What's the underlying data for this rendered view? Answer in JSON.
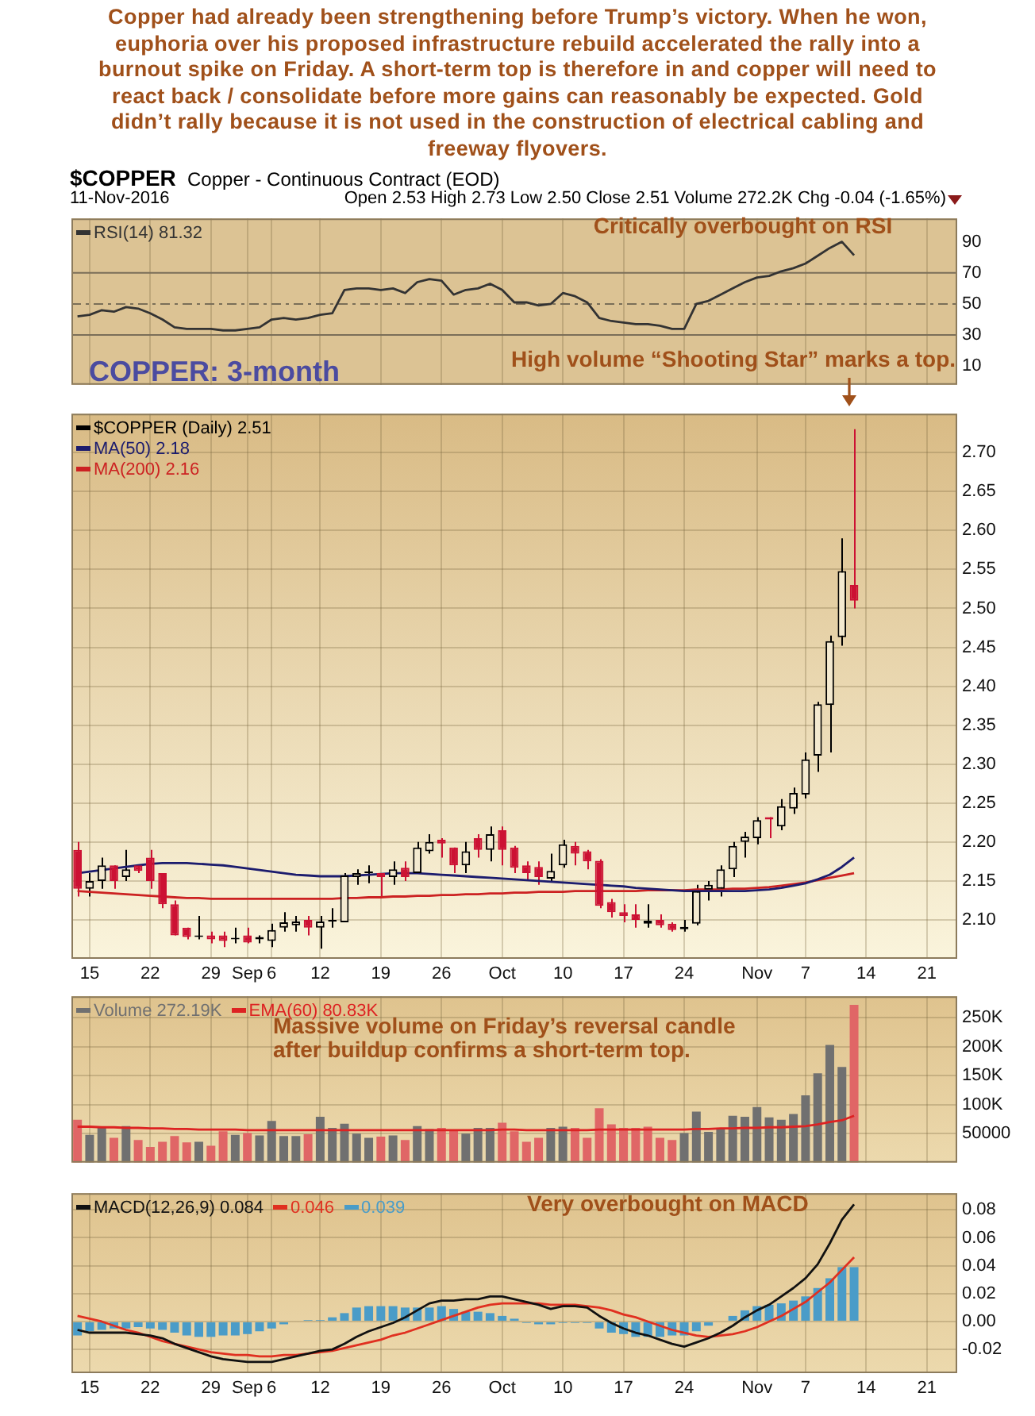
{
  "chart_data": [
    {
      "type": "other",
      "title": "Copper had already been strengthening before Trump’s victory. When he won, euphoria over his proposed infrastructure rebuild accelerated the rally into a burnout spike on Friday. A short-term top is therefore in and copper will need to react back / consolidate before more gains can reasonably be expected. Gold didn’t rally because it is not used in the construction of electrical cabling and freeway flyovers.",
      "annotations": [
        "$COPPER",
        "Copper - Continuous Contract (EOD)",
        "11-Nov-2016",
        "Open 2.53  High 2.73  Low 2.50  Close 2.51  Volume 272.2K  Chg -0.04 (-1.65%)"
      ]
    },
    {
      "type": "line",
      "categories": [
        null,
        null,
        null,
        null,
        null,
        null,
        null,
        null,
        null,
        null,
        null,
        null,
        null,
        null,
        null,
        null,
        null,
        null,
        null,
        null,
        null,
        null,
        null,
        null,
        null,
        null,
        null,
        null,
        null,
        null,
        null,
        null,
        null,
        null,
        null,
        null,
        null,
        null,
        null,
        null,
        null,
        null,
        null,
        null,
        null,
        null,
        null,
        null,
        null,
        null,
        null,
        null,
        null,
        null,
        null,
        null,
        null,
        null,
        null,
        null,
        null,
        null,
        null,
        null,
        null,
        null,
        null,
        null,
        null,
        null,
        null,
        null,
        null
      ],
      "series": [
        {
          "name": "RSI(14) 81.32",
          "color": "#333333",
          "values": [
            42,
            43,
            46,
            45,
            48,
            47,
            44,
            40,
            35,
            34,
            34,
            34,
            33,
            33,
            34,
            35,
            40,
            41,
            40,
            41,
            43,
            44,
            59,
            60,
            60,
            59,
            60,
            57,
            64,
            66,
            65,
            56,
            59,
            60,
            63,
            59,
            51,
            51,
            49,
            50,
            57,
            55,
            51,
            41,
            39,
            38,
            37,
            37,
            36,
            34,
            34,
            50,
            52,
            56,
            60,
            64,
            67,
            68,
            71,
            73,
            76,
            81,
            86,
            90,
            81.32,
            null,
            null,
            null,
            null,
            null,
            null,
            null,
            null
          ]
        }
      ],
      "ylim": [
        -2,
        105
      ],
      "yticks": [
        10,
        30,
        50,
        70,
        90
      ],
      "grid": "x",
      "tick_labels": "y",
      "legend": "top left",
      "ref_lines": [
        {
          "axis": "y",
          "value": 70,
          "color": "#7a6e58",
          "line_style": "solid"
        },
        {
          "axis": "y",
          "value": 50,
          "color": "#7a6e58",
          "line_style": "dashed"
        },
        {
          "axis": "y",
          "value": 30,
          "color": "#7a6e58",
          "line_style": "solid"
        }
      ],
      "annotations": [
        "Critically overbought on RSI"
      ]
    },
    {
      "type": "candlestick",
      "categories": [
        null,
        "15",
        null,
        null,
        null,
        null,
        "22",
        null,
        null,
        null,
        null,
        "29",
        null,
        null,
        "Sep",
        null,
        "6",
        null,
        null,
        null,
        "12",
        null,
        null,
        null,
        null,
        "19",
        null,
        null,
        null,
        null,
        "26",
        null,
        null,
        null,
        null,
        "Oct",
        null,
        null,
        null,
        null,
        "10",
        null,
        null,
        null,
        null,
        "17",
        null,
        null,
        null,
        null,
        "24",
        null,
        null,
        null,
        null,
        null,
        "Nov",
        null,
        null,
        null,
        "7",
        null,
        null,
        null,
        null,
        "14",
        null,
        null,
        null,
        null,
        "21",
        null,
        null
      ],
      "series": [
        {
          "name": "$COPPER (Daily) 2.51",
          "type": "candlestick",
          "color": "#000000",
          "colors": [
            "#cc1133",
            "#000000",
            "#000000",
            "#cc1133",
            "#000000",
            "#cc1133",
            "#cc1133",
            "#cc1133",
            "#cc1133",
            "#cc1133",
            "#000000",
            "#cc1133",
            "#cc1133",
            "#000000",
            "#cc1133",
            "#000000",
            "#000000",
            "#000000",
            "#000000",
            "#cc1133",
            "#000000",
            "#000000",
            "#000000",
            "#000000",
            "#000000",
            "#cc1133",
            "#000000",
            "#cc1133",
            "#000000",
            "#000000",
            "#cc1133",
            "#cc1133",
            "#000000",
            "#cc1133",
            "#000000",
            "#cc1133",
            "#cc1133",
            "#cc1133",
            "#cc1133",
            "#000000",
            "#000000",
            "#cc1133",
            "#cc1133",
            "#cc1133",
            "#cc1133",
            "#cc1133",
            "#cc1133",
            "#000000",
            "#cc1133",
            "#cc1133",
            "#000000",
            "#000000",
            "#000000",
            "#000000",
            "#000000",
            "#000000",
            "#000000",
            "#cc1133",
            "#000000",
            "#000000",
            "#000000",
            "#000000",
            "#000000",
            "#000000",
            "#cc1133",
            null,
            null,
            null,
            null,
            null,
            null,
            null,
            null
          ],
          "ohlc": [
            [
              2.19,
              2.2,
              2.13,
              2.14
            ],
            [
              2.14,
              2.16,
              2.13,
              2.15
            ],
            [
              2.15,
              2.18,
              2.14,
              2.17
            ],
            [
              2.17,
              2.17,
              2.14,
              2.15
            ],
            [
              2.155,
              2.19,
              2.15,
              2.165
            ],
            [
              2.17,
              2.17,
              2.16,
              2.163
            ],
            [
              2.18,
              2.19,
              2.14,
              2.15
            ],
            [
              2.16,
              2.16,
              2.115,
              2.12
            ],
            [
              2.12,
              2.125,
              2.08,
              2.08
            ],
            [
              2.09,
              2.09,
              2.075,
              2.078
            ],
            [
              2.078,
              2.105,
              2.075,
              2.08
            ],
            [
              2.08,
              2.085,
              2.07,
              2.075
            ],
            [
              2.08,
              2.085,
              2.065,
              2.073
            ],
            [
              2.075,
              2.09,
              2.07,
              2.077
            ],
            [
              2.08,
              2.09,
              2.07,
              2.071
            ],
            [
              2.075,
              2.08,
              2.07,
              2.078
            ],
            [
              2.073,
              2.095,
              2.065,
              2.087
            ],
            [
              2.09,
              2.11,
              2.085,
              2.097
            ],
            [
              2.093,
              2.105,
              2.085,
              2.098
            ],
            [
              2.1,
              2.105,
              2.08,
              2.09
            ],
            [
              2.09,
              2.105,
              2.063,
              2.098
            ],
            [
              2.098,
              2.115,
              2.09,
              2.1
            ],
            [
              2.097,
              2.16,
              2.097,
              2.157
            ],
            [
              2.155,
              2.165,
              2.145,
              2.16
            ],
            [
              2.16,
              2.17,
              2.147,
              2.16
            ],
            [
              2.16,
              2.16,
              2.13,
              2.155
            ],
            [
              2.155,
              2.175,
              2.145,
              2.165
            ],
            [
              2.167,
              2.175,
              2.15,
              2.155
            ],
            [
              2.16,
              2.2,
              2.16,
              2.193
            ],
            [
              2.188,
              2.21,
              2.185,
              2.2
            ],
            [
              2.203,
              2.205,
              2.18,
              2.198
            ],
            [
              2.193,
              2.193,
              2.16,
              2.17
            ],
            [
              2.17,
              2.2,
              2.16,
              2.188
            ],
            [
              2.205,
              2.21,
              2.18,
              2.19
            ],
            [
              2.19,
              2.22,
              2.175,
              2.21
            ],
            [
              2.215,
              2.22,
              2.17,
              2.19
            ],
            [
              2.193,
              2.195,
              2.16,
              2.167
            ],
            [
              2.17,
              2.175,
              2.15,
              2.16
            ],
            [
              2.168,
              2.175,
              2.145,
              2.155
            ],
            [
              2.153,
              2.185,
              2.148,
              2.163
            ],
            [
              2.17,
              2.203,
              2.167,
              2.197
            ],
            [
              2.195,
              2.2,
              2.17,
              2.185
            ],
            [
              2.188,
              2.19,
              2.165,
              2.175
            ],
            [
              2.176,
              2.178,
              2.115,
              2.118
            ],
            [
              2.123,
              2.127,
              2.103,
              2.11
            ],
            [
              2.11,
              2.12,
              2.097,
              2.105
            ],
            [
              2.107,
              2.12,
              2.09,
              2.1
            ],
            [
              2.095,
              2.12,
              2.09,
              2.099
            ],
            [
              2.1,
              2.107,
              2.09,
              2.093
            ],
            [
              2.095,
              2.097,
              2.085,
              2.087
            ],
            [
              2.088,
              2.1,
              2.085,
              2.091
            ],
            [
              2.095,
              2.145,
              2.093,
              2.137
            ],
            [
              2.139,
              2.15,
              2.125,
              2.145
            ],
            [
              2.14,
              2.17,
              2.13,
              2.165
            ],
            [
              2.165,
              2.2,
              2.155,
              2.195
            ],
            [
              2.2,
              2.213,
              2.18,
              2.207
            ],
            [
              2.205,
              2.232,
              2.197,
              2.228
            ],
            [
              2.232,
              2.232,
              2.205,
              2.229
            ],
            [
              2.22,
              2.255,
              2.215,
              2.246
            ],
            [
              2.243,
              2.27,
              2.236,
              2.263
            ],
            [
              2.261,
              2.315,
              2.256,
              2.306
            ],
            [
              2.311,
              2.38,
              2.29,
              2.377
            ],
            [
              2.376,
              2.465,
              2.315,
              2.458
            ],
            [
              2.463,
              2.59,
              2.452,
              2.548
            ],
            [
              2.53,
              2.73,
              2.5,
              2.51
            ],
            null,
            null,
            null,
            null,
            null,
            null,
            null,
            null
          ]
        },
        {
          "name": "MA(50) 2.18",
          "type": "line",
          "color": "#1c1c6e",
          "values": [
            2.16,
            2.162,
            2.164,
            2.166,
            2.168,
            2.17,
            2.172,
            2.173,
            2.173,
            2.173,
            2.172,
            2.171,
            2.17,
            2.168,
            2.166,
            2.164,
            2.162,
            2.16,
            2.158,
            2.157,
            2.156,
            2.156,
            2.156,
            2.157,
            2.158,
            2.159,
            2.16,
            2.16,
            2.16,
            2.159,
            2.158,
            2.157,
            2.156,
            2.155,
            2.154,
            2.153,
            2.152,
            2.151,
            2.15,
            2.149,
            2.148,
            2.147,
            2.146,
            2.145,
            2.144,
            2.143,
            2.141,
            2.14,
            2.139,
            2.138,
            2.137,
            2.137,
            2.137,
            2.137,
            2.137,
            2.137,
            2.138,
            2.139,
            2.141,
            2.144,
            2.147,
            2.152,
            2.158,
            2.168,
            2.18,
            null,
            null,
            null,
            null,
            null,
            null,
            null,
            null
          ]
        },
        {
          "name": "MA(200) 2.16",
          "type": "line",
          "color": "#cc2222",
          "values": [
            2.137,
            2.136,
            2.135,
            2.134,
            2.133,
            2.132,
            2.131,
            2.13,
            2.129,
            2.128,
            2.128,
            2.127,
            2.127,
            2.127,
            2.127,
            2.127,
            2.127,
            2.127,
            2.127,
            2.127,
            2.127,
            2.127,
            2.128,
            2.128,
            2.129,
            2.129,
            2.13,
            2.13,
            2.131,
            2.131,
            2.132,
            2.132,
            2.133,
            2.133,
            2.134,
            2.134,
            2.135,
            2.135,
            2.136,
            2.136,
            2.136,
            2.137,
            2.137,
            2.137,
            2.137,
            2.137,
            2.137,
            2.138,
            2.138,
            2.138,
            2.138,
            2.139,
            2.139,
            2.139,
            2.14,
            2.14,
            2.141,
            2.142,
            2.144,
            2.146,
            2.148,
            2.151,
            2.154,
            2.157,
            2.16,
            null,
            null,
            null,
            null,
            null,
            null,
            null,
            null
          ]
        }
      ],
      "ylim": [
        2.05,
        2.75
      ],
      "yticks": [
        {
          "value": 2.1,
          "label": "2.10"
        },
        2.15,
        {
          "value": 2.2,
          "label": "2.20"
        },
        2.25,
        {
          "value": 2.3,
          "label": "2.30"
        },
        2.35,
        {
          "value": 2.4,
          "label": "2.40"
        },
        2.45,
        {
          "value": 2.5,
          "label": "2.50"
        },
        2.55,
        {
          "value": 2.6,
          "label": "2.60"
        },
        2.65,
        {
          "value": 2.7,
          "label": "2.70"
        }
      ],
      "grid": true,
      "legend": "top left",
      "annotations": [
        "High volume “Shooting Star” marks a top.",
        "COPPER: 3-month"
      ]
    },
    {
      "type": "bar",
      "categories": [
        null,
        null,
        null,
        null,
        null,
        null,
        null,
        null,
        null,
        null,
        null,
        null,
        null,
        null,
        null,
        null,
        null,
        null,
        null,
        null,
        null,
        null,
        null,
        null,
        null,
        null,
        null,
        null,
        null,
        null,
        null,
        null,
        null,
        null,
        null,
        null,
        null,
        null,
        null,
        null,
        null,
        null,
        null,
        null,
        null,
        null,
        null,
        null,
        null,
        null,
        null,
        null,
        null,
        null,
        null,
        null,
        null,
        null,
        null,
        null,
        null,
        null,
        null,
        null,
        null,
        null,
        null,
        null,
        null,
        null,
        null,
        null,
        null
      ],
      "series": [
        {
          "name": "Volume 272.19K",
          "color": "#707070",
          "colors": [
            "#e06666",
            "#707070",
            "#707070",
            "#e06666",
            "#707070",
            "#e06666",
            "#e06666",
            "#e06666",
            "#e06666",
            "#e06666",
            "#707070",
            "#e06666",
            "#e06666",
            "#707070",
            "#e06666",
            "#707070",
            "#707070",
            "#707070",
            "#707070",
            "#e06666",
            "#707070",
            "#707070",
            "#707070",
            "#707070",
            "#707070",
            "#e06666",
            "#707070",
            "#e06666",
            "#707070",
            "#707070",
            "#e06666",
            "#e06666",
            "#707070",
            "#707070",
            "#707070",
            "#e06666",
            "#e06666",
            "#e06666",
            "#e06666",
            "#707070",
            "#707070",
            "#e06666",
            "#e06666",
            "#e06666",
            "#e06666",
            "#e06666",
            "#e06666",
            "#e06666",
            "#e06666",
            "#e06666",
            "#707070",
            "#707070",
            "#707070",
            "#707070",
            "#707070",
            "#707070",
            "#707070",
            "#707070",
            "#707070",
            "#707070",
            "#707070",
            "#707070",
            "#707070",
            "#707070",
            "#e06666",
            null,
            null,
            null,
            null,
            null,
            null,
            null,
            null
          ],
          "values": [
            74000,
            48000,
            60000,
            43000,
            63000,
            39000,
            27000,
            36000,
            46000,
            35000,
            36000,
            29000,
            54000,
            48000,
            51000,
            47000,
            72000,
            46000,
            46000,
            49000,
            79000,
            60000,
            67000,
            50000,
            43000,
            45000,
            47000,
            39000,
            63000,
            58000,
            60000,
            55000,
            50000,
            60000,
            60000,
            69000,
            54000,
            36000,
            43000,
            60000,
            62000,
            60000,
            43000,
            94000,
            66000,
            60000,
            60000,
            62000,
            43000,
            39000,
            51000,
            88000,
            53000,
            60000,
            81000,
            79000,
            96000,
            78000,
            74000,
            84000,
            116000,
            154000,
            203000,
            165000,
            272190,
            null,
            null,
            null,
            null,
            null,
            null,
            null,
            null
          ]
        },
        {
          "name": "EMA(60) 80.83K",
          "type": "line",
          "color": "#dd2222",
          "values": [
            62000,
            62000,
            61000,
            61000,
            60000,
            60000,
            59000,
            59000,
            58000,
            58000,
            57000,
            57000,
            57000,
            57000,
            56000,
            56000,
            56000,
            56000,
            56000,
            56000,
            56000,
            56000,
            56000,
            56000,
            56000,
            56000,
            56000,
            56000,
            56000,
            56000,
            56000,
            56000,
            56000,
            56000,
            56000,
            57000,
            57000,
            56000,
            56000,
            56000,
            56000,
            56000,
            56000,
            57000,
            57000,
            57000,
            57000,
            57000,
            57000,
            57000,
            57000,
            58000,
            58000,
            59000,
            59000,
            60000,
            60000,
            61000,
            61000,
            62000,
            63000,
            66000,
            70000,
            73000,
            80830,
            null,
            null,
            null,
            null,
            null,
            null,
            null,
            null
          ]
        }
      ],
      "ylim": [
        0,
        287000
      ],
      "yticks": [
        50000,
        {
          "value": 100000,
          "label": "100K"
        },
        {
          "value": 150000,
          "label": "150K"
        },
        {
          "value": 200000,
          "label": "200K"
        },
        {
          "value": 250000,
          "label": "250K"
        }
      ],
      "grid": true,
      "tick_labels": "y",
      "legend": "top left",
      "annotations": [
        "Massive volume on Friday’s reversal candle",
        "after buildup confirms a short-term top."
      ]
    },
    {
      "type": "bar",
      "categories": [
        null,
        "15",
        null,
        null,
        null,
        null,
        "22",
        null,
        null,
        null,
        null,
        "29",
        null,
        null,
        "Sep",
        null,
        "6",
        null,
        null,
        null,
        "12",
        null,
        null,
        null,
        null,
        "19",
        null,
        null,
        null,
        null,
        "26",
        null,
        null,
        null,
        null,
        "Oct",
        null,
        null,
        null,
        null,
        "10",
        null,
        null,
        null,
        null,
        "17",
        null,
        null,
        null,
        null,
        "24",
        null,
        null,
        null,
        null,
        null,
        "Nov",
        null,
        null,
        null,
        "7",
        null,
        null,
        null,
        null,
        "14",
        null,
        null,
        null,
        null,
        "21",
        null,
        null
      ],
      "series": [
        {
          "name": "MACD(12,26,9) 0.084",
          "type": "line",
          "color": "#111111",
          "values": [
            -0.006,
            -0.008,
            -0.008,
            -0.008,
            -0.008,
            -0.009,
            -0.01,
            -0.012,
            -0.016,
            -0.019,
            -0.022,
            -0.025,
            -0.027,
            -0.028,
            -0.029,
            -0.029,
            -0.029,
            -0.027,
            -0.025,
            -0.023,
            -0.021,
            -0.02,
            -0.016,
            -0.011,
            -0.007,
            -0.004,
            -0.001,
            0.003,
            0.008,
            0.013,
            0.015,
            0.015,
            0.016,
            0.016,
            0.018,
            0.018,
            0.016,
            0.014,
            0.012,
            0.009,
            0.011,
            0.011,
            0.01,
            0.004,
            -0.001,
            -0.005,
            -0.008,
            -0.01,
            -0.013,
            -0.016,
            -0.018,
            -0.015,
            -0.012,
            -0.008,
            -0.003,
            0.003,
            0.008,
            0.012,
            0.018,
            0.024,
            0.031,
            0.041,
            0.056,
            0.073,
            0.084,
            null,
            null,
            null,
            null,
            null,
            null,
            null,
            null
          ]
        },
        {
          "name": "0.046",
          "type": "line",
          "color": "#e03020",
          "values": [
            0.004,
            0.002,
            0,
            -0.003,
            -0.006,
            -0.008,
            -0.011,
            -0.014,
            -0.016,
            -0.018,
            -0.02,
            -0.022,
            -0.023,
            -0.024,
            -0.024,
            -0.025,
            -0.025,
            -0.024,
            -0.024,
            -0.023,
            -0.022,
            -0.021,
            -0.019,
            -0.017,
            -0.015,
            -0.013,
            -0.01,
            -0.008,
            -0.005,
            -0.002,
            0.001,
            0.004,
            0.007,
            0.01,
            0.012,
            0.013,
            0.013,
            0.013,
            0.013,
            0.012,
            0.012,
            0.012,
            0.011,
            0.01,
            0.008,
            0.005,
            0.003,
            0,
            -0.003,
            -0.006,
            -0.008,
            -0.01,
            -0.011,
            -0.01,
            -0.009,
            -0.007,
            -0.004,
            0,
            0.004,
            0.009,
            0.014,
            0.021,
            0.028,
            0.037,
            0.046,
            null,
            null,
            null,
            null,
            null,
            null,
            null,
            null
          ]
        },
        {
          "name": "0.039",
          "type": "bar",
          "color": "#4a9cc8",
          "values": [
            -0.01,
            -0.007,
            -0.006,
            -0.005,
            -0.005,
            -0.004,
            -0.005,
            -0.006,
            -0.008,
            -0.01,
            -0.011,
            -0.011,
            -0.01,
            -0.01,
            -0.009,
            -0.007,
            -0.005,
            -0.002,
            0,
            0.001,
            0.001,
            0.003,
            0.006,
            0.01,
            0.011,
            0.011,
            0.011,
            0.01,
            0.01,
            0.01,
            0.011,
            0.009,
            0.007,
            0.007,
            0.006,
            0.004,
            0.002,
            -0.001,
            -0.002,
            -0.002,
            -0.001,
            -0.001,
            -0.001,
            -0.005,
            -0.008,
            -0.009,
            -0.011,
            -0.011,
            -0.011,
            -0.01,
            -0.01,
            -0.007,
            -0.003,
            0,
            0.004,
            0.008,
            0.011,
            0.012,
            0.013,
            0.015,
            0.018,
            0.024,
            0.031,
            0.039,
            0.039,
            null,
            null,
            null,
            null,
            null,
            null,
            null,
            null
          ]
        }
      ],
      "ylim": [
        -0.037,
        0.092
      ],
      "yticks": [
        -0.02,
        {
          "value": 0,
          "label": "0.00"
        },
        0.02,
        0.04,
        0.06,
        0.08
      ],
      "grid": true,
      "legend": "top left",
      "annotations": [
        "Very overbought on MACD"
      ]
    }
  ]
}
